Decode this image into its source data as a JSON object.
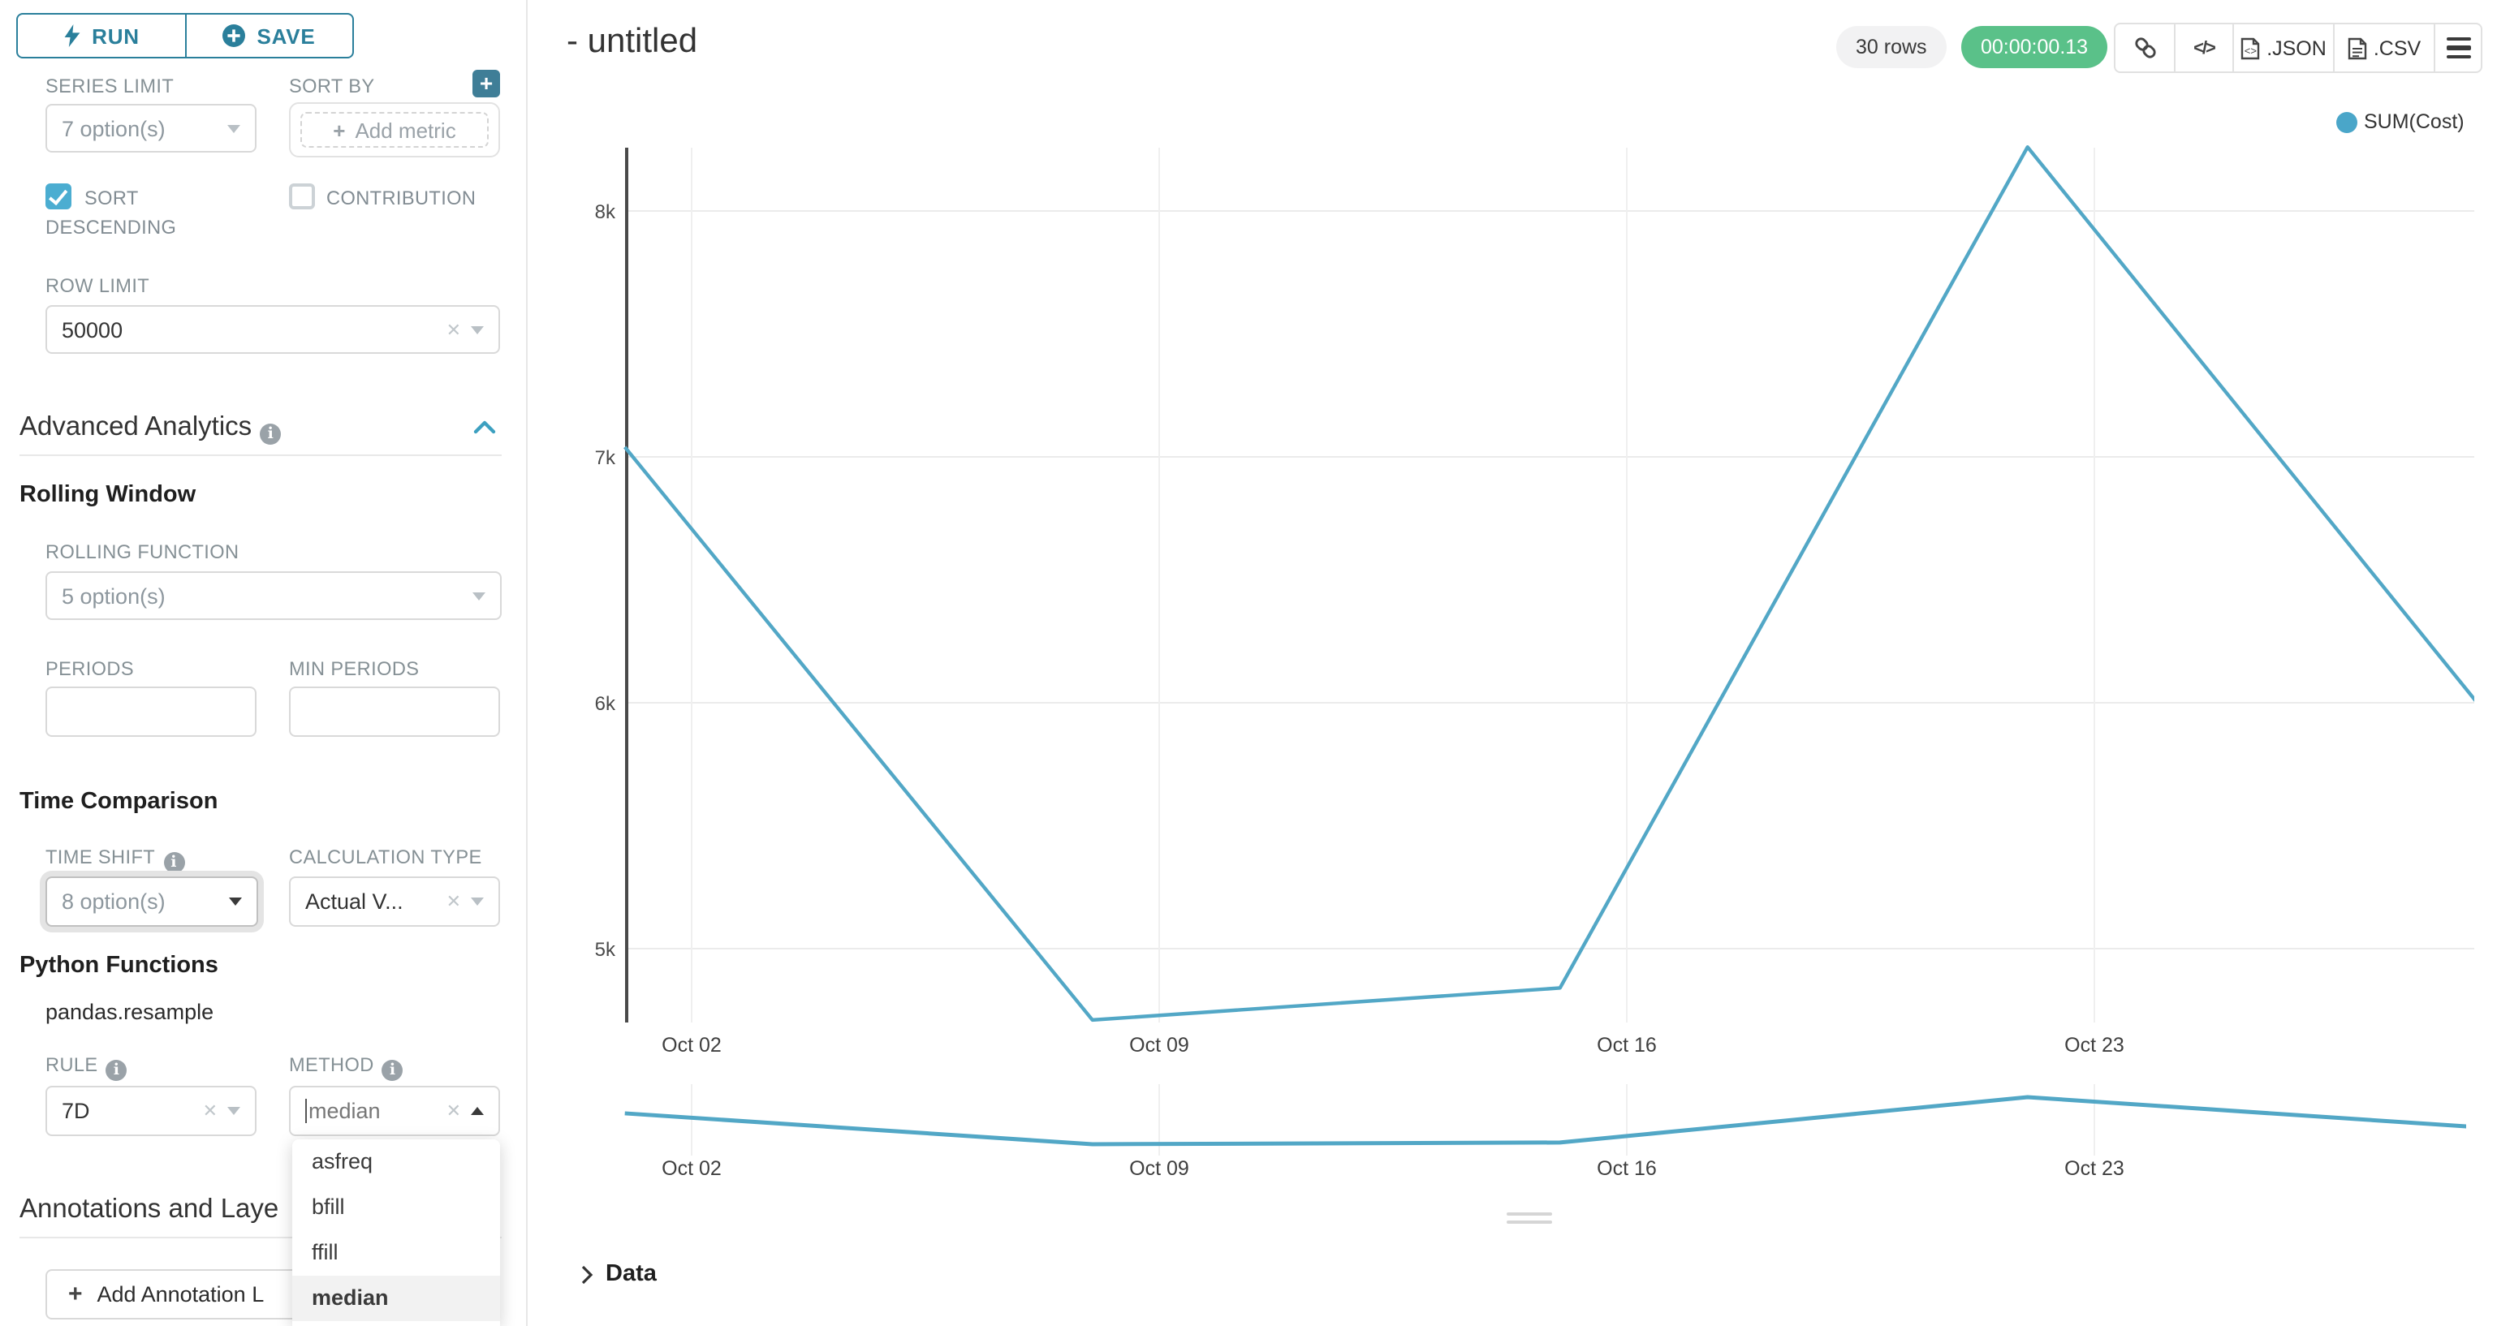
{
  "sidebar": {
    "run_label": "RUN",
    "save_label": "SAVE",
    "series_limit": {
      "label": "SERIES LIMIT",
      "value": "7 option(s)"
    },
    "sort_by": {
      "label": "SORT BY",
      "placeholder": "Add metric"
    },
    "sort_descending_label_line1": "SORT",
    "sort_descending_label_line2": "DESCENDING",
    "contribution_label": "CONTRIBUTION",
    "row_limit": {
      "label": "ROW LIMIT",
      "value": "50000"
    },
    "advanced_analytics_title": "Advanced Analytics",
    "rolling_window_title": "Rolling Window",
    "rolling_function": {
      "label": "ROLLING FUNCTION",
      "value": "5 option(s)"
    },
    "periods_label": "PERIODS",
    "min_periods_label": "MIN PERIODS",
    "time_comparison_title": "Time Comparison",
    "time_shift": {
      "label": "TIME SHIFT",
      "value": "8 option(s)"
    },
    "calculation_type": {
      "label": "CALCULATION TYPE",
      "value": "Actual V..."
    },
    "python_functions_title": "Python Functions",
    "pandas_resample_label": "pandas.resample",
    "rule": {
      "label": "RULE",
      "value": "7D"
    },
    "method": {
      "label": "METHOD",
      "value": "median",
      "selected": "median",
      "options": [
        "asfreq",
        "bfill",
        "ffill",
        "median"
      ]
    },
    "annotations_title": "Annotations and Laye",
    "add_annotation_label": "Add Annotation L"
  },
  "header": {
    "title": "- untitled",
    "row_count": "30 rows",
    "timer": "00:00:00.13",
    "json_label": ".JSON",
    "csv_label": ".CSV"
  },
  "chart_data": {
    "type": "line",
    "title": "- untitled",
    "legend": {
      "name": "SUM(Cost)",
      "position": "top-right"
    },
    "series": [
      {
        "name": "SUM(Cost)",
        "x": [
          "Oct 01",
          "Oct 08",
          "Oct 15",
          "Oct 22",
          "Oct 29"
        ],
        "day_offsets": [
          1,
          8,
          15,
          22,
          29
        ],
        "values": [
          7040,
          4710,
          4840,
          8260,
          5910
        ]
      }
    ],
    "x_axis": {
      "tick_days": [
        2,
        9,
        16,
        23
      ],
      "tick_labels": [
        "Oct 02",
        "Oct 09",
        "Oct 16",
        "Oct 23"
      ]
    },
    "y_axis": {
      "tick_values": [
        8000,
        7000,
        6000,
        5000
      ],
      "tick_labels": [
        "8k",
        "7k",
        "6k",
        "5k"
      ]
    },
    "ylim": [
      4300,
      8500
    ],
    "grid": true,
    "preview_strip": {
      "same_series": true,
      "tick_labels": [
        "Oct 02",
        "Oct 09",
        "Oct 16",
        "Oct 23"
      ]
    }
  },
  "data_panel": {
    "label": "Data"
  },
  "colors": {
    "accent_teal": "#2a7f9b",
    "control_teal": "#4badd1",
    "plus_button_teal": "#3f7e97",
    "collapse_chevron": "#3da0c0",
    "line": "#52a7c6",
    "legend_dot": "#4aa6c9",
    "timer_green": "#5ac189",
    "axis": "#4a4a4a",
    "gridline": "#ebebeb"
  },
  "icons": {
    "run": "lightning-bolt-icon",
    "save": "plus-circle-icon",
    "add": "plus-icon",
    "info": "info-circle-icon",
    "clear": "x-icon",
    "caret": "caret-down-icon",
    "link": "link-icon",
    "embed": "code-icon",
    "json": "file-code-icon",
    "csv": "file-text-icon",
    "menu": "hamburger-icon",
    "expand": "chevron-right-icon",
    "collapse": "chevron-up-icon",
    "drag": "drag-handle-icon"
  }
}
